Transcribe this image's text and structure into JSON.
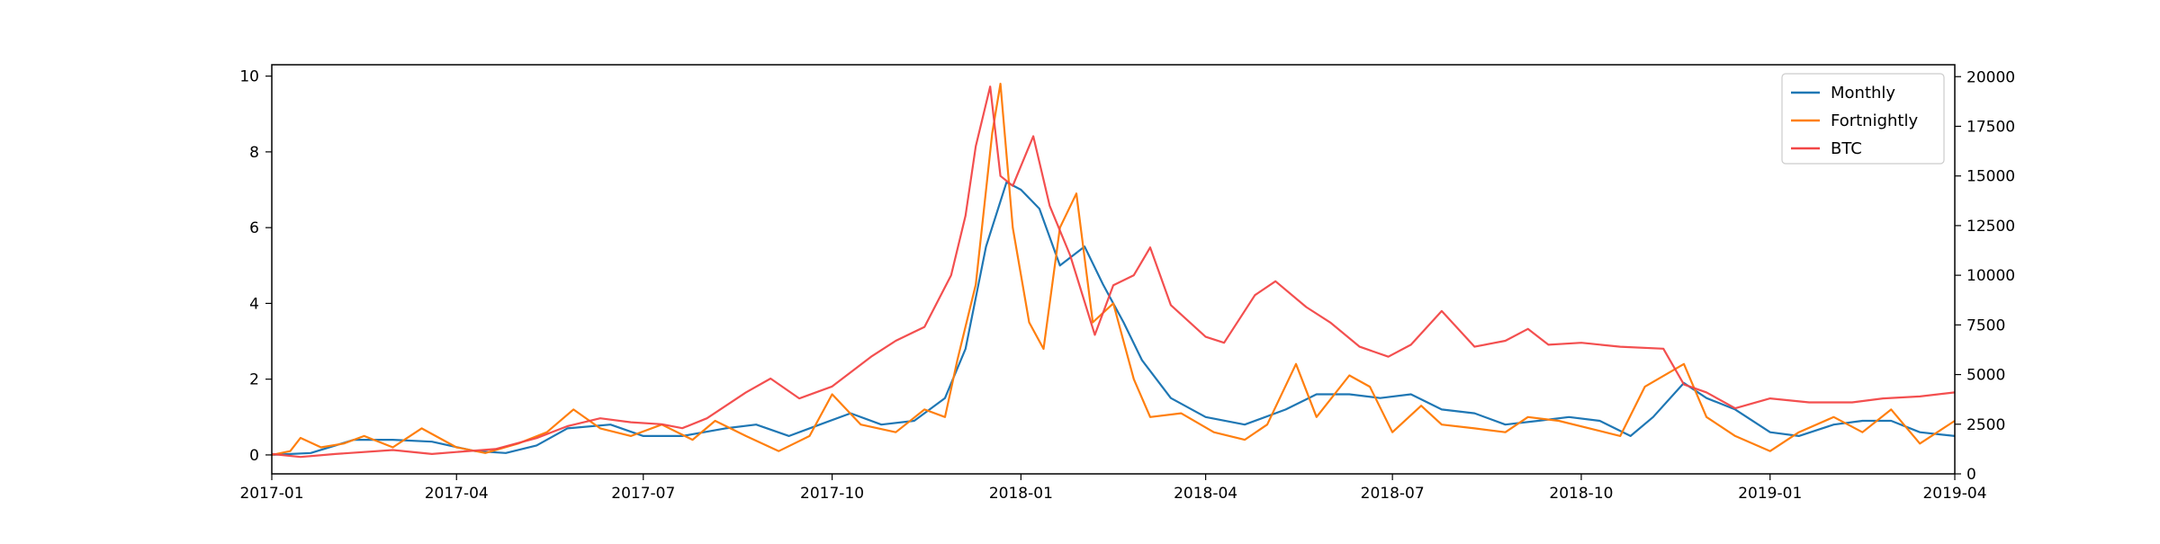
{
  "chart_data": {
    "type": "line",
    "title": "",
    "xlabel": "",
    "ylabel": "",
    "y2label": "",
    "xlim": [
      "2017-01-01",
      "2019-04-01"
    ],
    "ylim": [
      -0.5,
      10.3
    ],
    "y2lim": [
      0,
      20600
    ],
    "x_ticks": [
      "2017-01",
      "2017-04",
      "2017-07",
      "2017-10",
      "2018-01",
      "2018-04",
      "2018-07",
      "2018-10",
      "2019-01",
      "2019-04"
    ],
    "y_ticks": [
      "0",
      "2",
      "4",
      "6",
      "8",
      "10"
    ],
    "y2_ticks": [
      "0",
      "2500",
      "5000",
      "7500",
      "10000",
      "12500",
      "15000",
      "17500",
      "20000"
    ],
    "grid": false,
    "legend_position": "top-right",
    "series": [
      {
        "name": "Monthly",
        "axis": "left",
        "color": "#1f77b4",
        "points": [
          [
            "2017-01-01",
            0.0
          ],
          [
            "2017-01-20",
            0.05
          ],
          [
            "2017-02-10",
            0.4
          ],
          [
            "2017-03-01",
            0.4
          ],
          [
            "2017-03-20",
            0.35
          ],
          [
            "2017-04-10",
            0.1
          ],
          [
            "2017-04-25",
            0.05
          ],
          [
            "2017-05-10",
            0.25
          ],
          [
            "2017-05-25",
            0.7
          ],
          [
            "2017-06-15",
            0.8
          ],
          [
            "2017-07-01",
            0.5
          ],
          [
            "2017-07-20",
            0.5
          ],
          [
            "2017-08-10",
            0.7
          ],
          [
            "2017-08-25",
            0.8
          ],
          [
            "2017-09-10",
            0.5
          ],
          [
            "2017-09-25",
            0.8
          ],
          [
            "2017-10-10",
            1.1
          ],
          [
            "2017-10-25",
            0.8
          ],
          [
            "2017-11-10",
            0.9
          ],
          [
            "2017-11-25",
            1.5
          ],
          [
            "2017-12-05",
            2.8
          ],
          [
            "2017-12-15",
            5.5
          ],
          [
            "2017-12-25",
            7.2
          ],
          [
            "2018-01-01",
            7.0
          ],
          [
            "2018-01-10",
            6.5
          ],
          [
            "2018-01-20",
            5.0
          ],
          [
            "2018-02-01",
            5.5
          ],
          [
            "2018-02-10",
            4.5
          ],
          [
            "2018-02-20",
            3.5
          ],
          [
            "2018-03-01",
            2.5
          ],
          [
            "2018-03-15",
            1.5
          ],
          [
            "2018-04-01",
            1.0
          ],
          [
            "2018-04-20",
            0.8
          ],
          [
            "2018-05-10",
            1.2
          ],
          [
            "2018-05-25",
            1.6
          ],
          [
            "2018-06-10",
            1.6
          ],
          [
            "2018-06-25",
            1.5
          ],
          [
            "2018-07-10",
            1.6
          ],
          [
            "2018-07-25",
            1.2
          ],
          [
            "2018-08-10",
            1.1
          ],
          [
            "2018-08-25",
            0.8
          ],
          [
            "2018-09-10",
            0.9
          ],
          [
            "2018-09-25",
            1.0
          ],
          [
            "2018-10-10",
            0.9
          ],
          [
            "2018-10-25",
            0.5
          ],
          [
            "2018-11-05",
            1.0
          ],
          [
            "2018-11-20",
            1.9
          ],
          [
            "2018-12-01",
            1.5
          ],
          [
            "2018-12-15",
            1.2
          ],
          [
            "2019-01-01",
            0.6
          ],
          [
            "2019-01-15",
            0.5
          ],
          [
            "2019-02-01",
            0.8
          ],
          [
            "2019-02-15",
            0.9
          ],
          [
            "2019-03-01",
            0.9
          ],
          [
            "2019-03-15",
            0.6
          ],
          [
            "2019-04-01",
            0.5
          ]
        ]
      },
      {
        "name": "Fortnightly",
        "axis": "left",
        "color": "#ff7f0e",
        "points": [
          [
            "2017-01-01",
            0.0
          ],
          [
            "2017-01-10",
            0.1
          ],
          [
            "2017-01-15",
            0.45
          ],
          [
            "2017-01-25",
            0.2
          ],
          [
            "2017-02-05",
            0.3
          ],
          [
            "2017-02-15",
            0.5
          ],
          [
            "2017-03-01",
            0.2
          ],
          [
            "2017-03-15",
            0.7
          ],
          [
            "2017-04-01",
            0.2
          ],
          [
            "2017-04-15",
            0.05
          ],
          [
            "2017-05-01",
            0.3
          ],
          [
            "2017-05-15",
            0.6
          ],
          [
            "2017-05-28",
            1.2
          ],
          [
            "2017-06-10",
            0.7
          ],
          [
            "2017-06-25",
            0.5
          ],
          [
            "2017-07-10",
            0.8
          ],
          [
            "2017-07-25",
            0.4
          ],
          [
            "2017-08-05",
            0.9
          ],
          [
            "2017-08-20",
            0.5
          ],
          [
            "2017-09-05",
            0.1
          ],
          [
            "2017-09-20",
            0.5
          ],
          [
            "2017-10-01",
            1.6
          ],
          [
            "2017-10-15",
            0.8
          ],
          [
            "2017-11-01",
            0.6
          ],
          [
            "2017-11-15",
            1.2
          ],
          [
            "2017-11-25",
            1.0
          ],
          [
            "2017-12-01",
            2.5
          ],
          [
            "2017-12-10",
            4.5
          ],
          [
            "2017-12-18",
            8.5
          ],
          [
            "2017-12-22",
            9.8
          ],
          [
            "2017-12-28",
            6.0
          ],
          [
            "2018-01-05",
            3.5
          ],
          [
            "2018-01-12",
            2.8
          ],
          [
            "2018-01-20",
            6.0
          ],
          [
            "2018-01-28",
            6.9
          ],
          [
            "2018-02-05",
            3.5
          ],
          [
            "2018-02-15",
            4.0
          ],
          [
            "2018-02-25",
            2.0
          ],
          [
            "2018-03-05",
            1.0
          ],
          [
            "2018-03-20",
            1.1
          ],
          [
            "2018-04-05",
            0.6
          ],
          [
            "2018-04-20",
            0.4
          ],
          [
            "2018-05-01",
            0.8
          ],
          [
            "2018-05-15",
            2.4
          ],
          [
            "2018-05-25",
            1.0
          ],
          [
            "2018-06-10",
            2.1
          ],
          [
            "2018-06-20",
            1.8
          ],
          [
            "2018-07-01",
            0.6
          ],
          [
            "2018-07-15",
            1.3
          ],
          [
            "2018-07-25",
            0.8
          ],
          [
            "2018-08-10",
            0.7
          ],
          [
            "2018-08-25",
            0.6
          ],
          [
            "2018-09-05",
            1.0
          ],
          [
            "2018-09-20",
            0.9
          ],
          [
            "2018-10-05",
            0.7
          ],
          [
            "2018-10-20",
            0.5
          ],
          [
            "2018-11-01",
            1.8
          ],
          [
            "2018-11-20",
            2.4
          ],
          [
            "2018-12-01",
            1.0
          ],
          [
            "2018-12-15",
            0.5
          ],
          [
            "2019-01-01",
            0.1
          ],
          [
            "2019-01-15",
            0.6
          ],
          [
            "2019-02-01",
            1.0
          ],
          [
            "2019-02-15",
            0.6
          ],
          [
            "2019-03-01",
            1.2
          ],
          [
            "2019-03-15",
            0.3
          ],
          [
            "2019-04-01",
            0.9
          ]
        ]
      },
      {
        "name": "BTC",
        "axis": "right",
        "color": "#f24646",
        "points": [
          [
            "2017-01-01",
            1000
          ],
          [
            "2017-01-15",
            850
          ],
          [
            "2017-02-01",
            1000
          ],
          [
            "2017-03-01",
            1200
          ],
          [
            "2017-03-20",
            1000
          ],
          [
            "2017-04-01",
            1100
          ],
          [
            "2017-04-20",
            1250
          ],
          [
            "2017-05-10",
            1800
          ],
          [
            "2017-05-25",
            2400
          ],
          [
            "2017-06-10",
            2800
          ],
          [
            "2017-06-25",
            2600
          ],
          [
            "2017-07-10",
            2500
          ],
          [
            "2017-07-20",
            2300
          ],
          [
            "2017-08-01",
            2800
          ],
          [
            "2017-08-20",
            4100
          ],
          [
            "2017-09-01",
            4800
          ],
          [
            "2017-09-15",
            3800
          ],
          [
            "2017-10-01",
            4400
          ],
          [
            "2017-10-20",
            5900
          ],
          [
            "2017-11-01",
            6700
          ],
          [
            "2017-11-15",
            7400
          ],
          [
            "2017-11-28",
            10000
          ],
          [
            "2017-12-05",
            13000
          ],
          [
            "2017-12-10",
            16500
          ],
          [
            "2017-12-17",
            19500
          ],
          [
            "2017-12-22",
            15000
          ],
          [
            "2017-12-28",
            14500
          ],
          [
            "2018-01-07",
            17000
          ],
          [
            "2018-01-15",
            13500
          ],
          [
            "2018-01-25",
            11000
          ],
          [
            "2018-02-06",
            7000
          ],
          [
            "2018-02-15",
            9500
          ],
          [
            "2018-02-25",
            10000
          ],
          [
            "2018-03-05",
            11400
          ],
          [
            "2018-03-15",
            8500
          ],
          [
            "2018-04-01",
            6900
          ],
          [
            "2018-04-10",
            6600
          ],
          [
            "2018-04-25",
            9000
          ],
          [
            "2018-05-05",
            9700
          ],
          [
            "2018-05-20",
            8400
          ],
          [
            "2018-06-01",
            7600
          ],
          [
            "2018-06-15",
            6400
          ],
          [
            "2018-06-29",
            5900
          ],
          [
            "2018-07-10",
            6500
          ],
          [
            "2018-07-25",
            8200
          ],
          [
            "2018-08-10",
            6400
          ],
          [
            "2018-08-25",
            6700
          ],
          [
            "2018-09-05",
            7300
          ],
          [
            "2018-09-15",
            6500
          ],
          [
            "2018-10-01",
            6600
          ],
          [
            "2018-10-20",
            6400
          ],
          [
            "2018-11-10",
            6300
          ],
          [
            "2018-11-20",
            4500
          ],
          [
            "2018-12-01",
            4100
          ],
          [
            "2018-12-15",
            3300
          ],
          [
            "2019-01-01",
            3800
          ],
          [
            "2019-01-20",
            3600
          ],
          [
            "2019-02-10",
            3600
          ],
          [
            "2019-02-25",
            3800
          ],
          [
            "2019-03-15",
            3900
          ],
          [
            "2019-04-01",
            4100
          ]
        ]
      }
    ]
  }
}
